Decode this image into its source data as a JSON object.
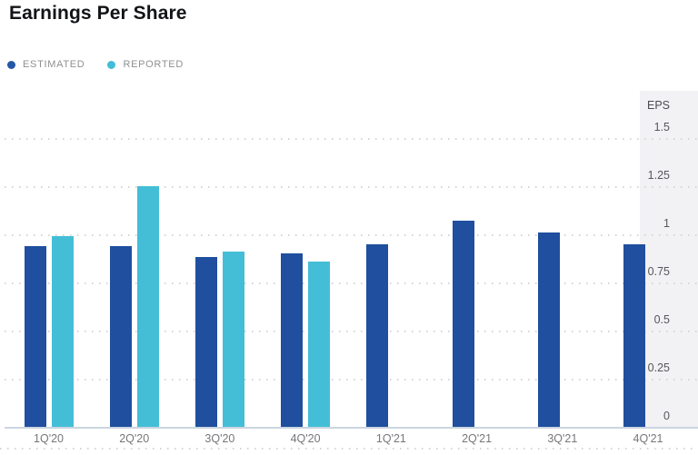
{
  "page": {
    "title": "Earnings Per Share"
  },
  "legend": {
    "items": [
      {
        "label": "ESTIMATED",
        "color": "#2458a6"
      },
      {
        "label": "REPORTED",
        "color": "#43bdd7"
      }
    ]
  },
  "chart_data": {
    "type": "bar",
    "title": "Earnings Per Share",
    "categories": [
      "1Q'20",
      "2Q'20",
      "3Q'20",
      "4Q'20",
      "1Q'21",
      "2Q'21",
      "3Q'21",
      "4Q'21"
    ],
    "series": [
      {
        "name": "ESTIMATED",
        "color": "#1f4f9e",
        "values": [
          0.94,
          0.94,
          0.88,
          0.9,
          0.95,
          1.07,
          1.01,
          0.95
        ]
      },
      {
        "name": "REPORTED",
        "color": "#44bed6",
        "values": [
          0.99,
          1.25,
          0.91,
          0.86,
          null,
          null,
          null,
          null
        ]
      }
    ],
    "y_axis": {
      "label": "EPS",
      "ticks": [
        "0",
        "0.25",
        "0.5",
        "0.75",
        "1",
        "1.25",
        "1.5"
      ],
      "tick_values": [
        0,
        0.25,
        0.5,
        0.75,
        1,
        1.25,
        1.5
      ],
      "range": [
        0,
        1.75
      ],
      "position": "right"
    },
    "x_axis": {
      "label": ""
    },
    "grid": "horizontal-dotted",
    "legend_position": "top-left",
    "highlight": {
      "category": "4Q'21",
      "note": "upcoming-quarter shaded band"
    }
  },
  "colors": {
    "estimated": "#1f4f9e",
    "reported": "#44bed6",
    "grid": "#d6d6d6",
    "axis_line": "#cbd5e1",
    "panel": "#f2f2f5",
    "title_text": "#121417",
    "legend_text": "#8e9093",
    "y_label_text": "#56575b",
    "x_label_text": "#76777b"
  }
}
